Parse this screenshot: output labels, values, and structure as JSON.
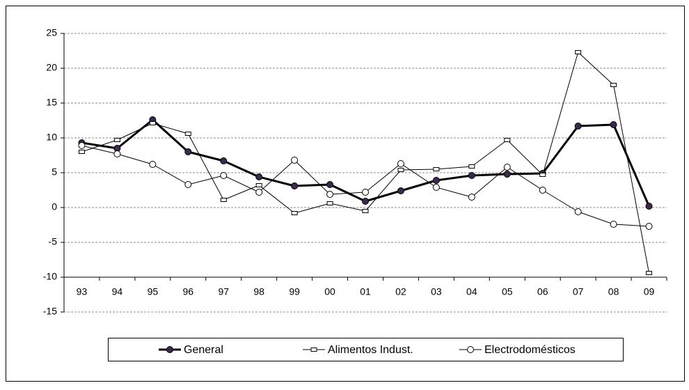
{
  "chart_data": {
    "type": "line",
    "categories": [
      "93",
      "94",
      "95",
      "96",
      "97",
      "98",
      "99",
      "00",
      "01",
      "02",
      "03",
      "04",
      "05",
      "06",
      "07",
      "08",
      "09"
    ],
    "series": [
      {
        "name": "General",
        "color": "#000000",
        "width": 3,
        "marker": "filled-circle",
        "marker_color": "#3b2a4d",
        "values": [
          9.3,
          8.5,
          12.6,
          8.0,
          6.7,
          4.4,
          3.1,
          3.3,
          0.9,
          2.4,
          3.9,
          4.6,
          4.8,
          4.9,
          11.7,
          11.9,
          0.2
        ]
      },
      {
        "name": "Alimentos Indust.",
        "color": "#000000",
        "width": 1,
        "marker": "square",
        "marker_color": "#ffffff",
        "values": [
          8.0,
          9.7,
          12.1,
          10.6,
          1.1,
          3.2,
          -0.8,
          0.6,
          -0.5,
          5.4,
          5.5,
          5.9,
          9.7,
          4.7,
          22.3,
          17.6,
          -9.4
        ]
      },
      {
        "name": "Electrodomésticos",
        "color": "#000000",
        "width": 1,
        "marker": "circle",
        "marker_color": "#ffffff",
        "values": [
          8.9,
          7.7,
          6.2,
          3.3,
          4.6,
          2.2,
          6.8,
          1.9,
          2.2,
          6.3,
          2.9,
          1.5,
          5.8,
          2.5,
          -0.6,
          -2.4,
          -2.7
        ]
      }
    ],
    "ylim": [
      -15,
      25
    ],
    "yticks": [
      -15,
      -10,
      -5,
      0,
      5,
      10,
      15,
      20,
      25
    ],
    "x_axis_crosses": -10,
    "grid": true,
    "legend": "bottom"
  }
}
